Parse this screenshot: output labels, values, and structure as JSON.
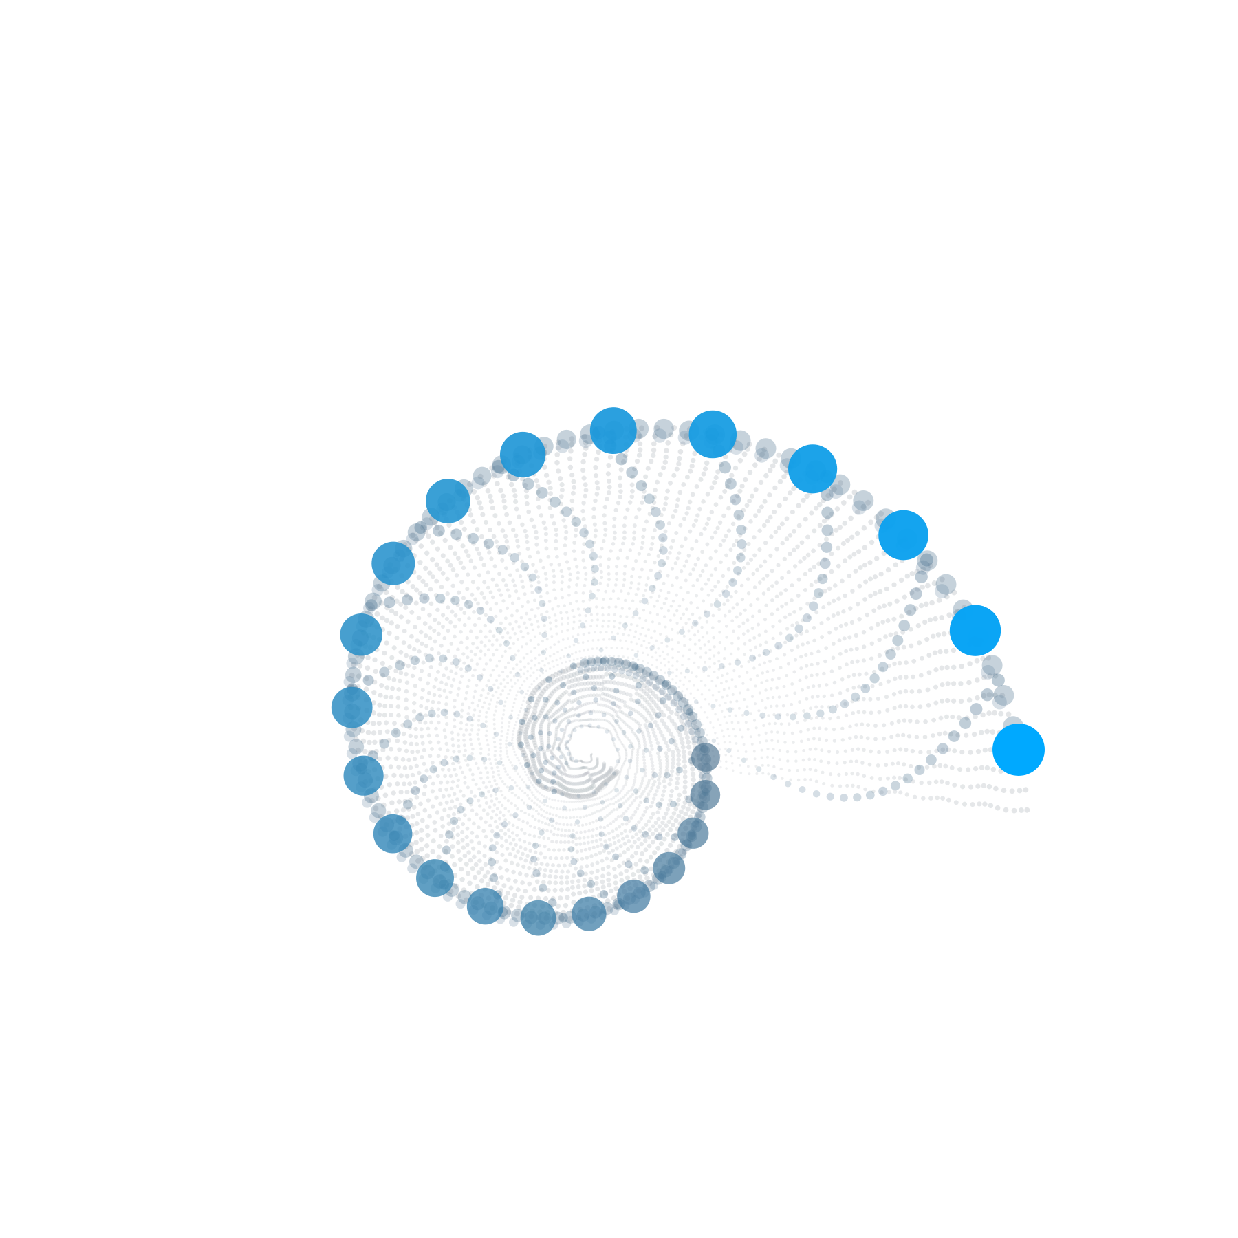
{
  "figure": {
    "type": "generative-spiral-dot-art",
    "background_color": "#ffffff",
    "accent_color": "#00a9ff",
    "secondary_color": "#4d7390",
    "faint_color": "#b9bfc4"
  }
}
